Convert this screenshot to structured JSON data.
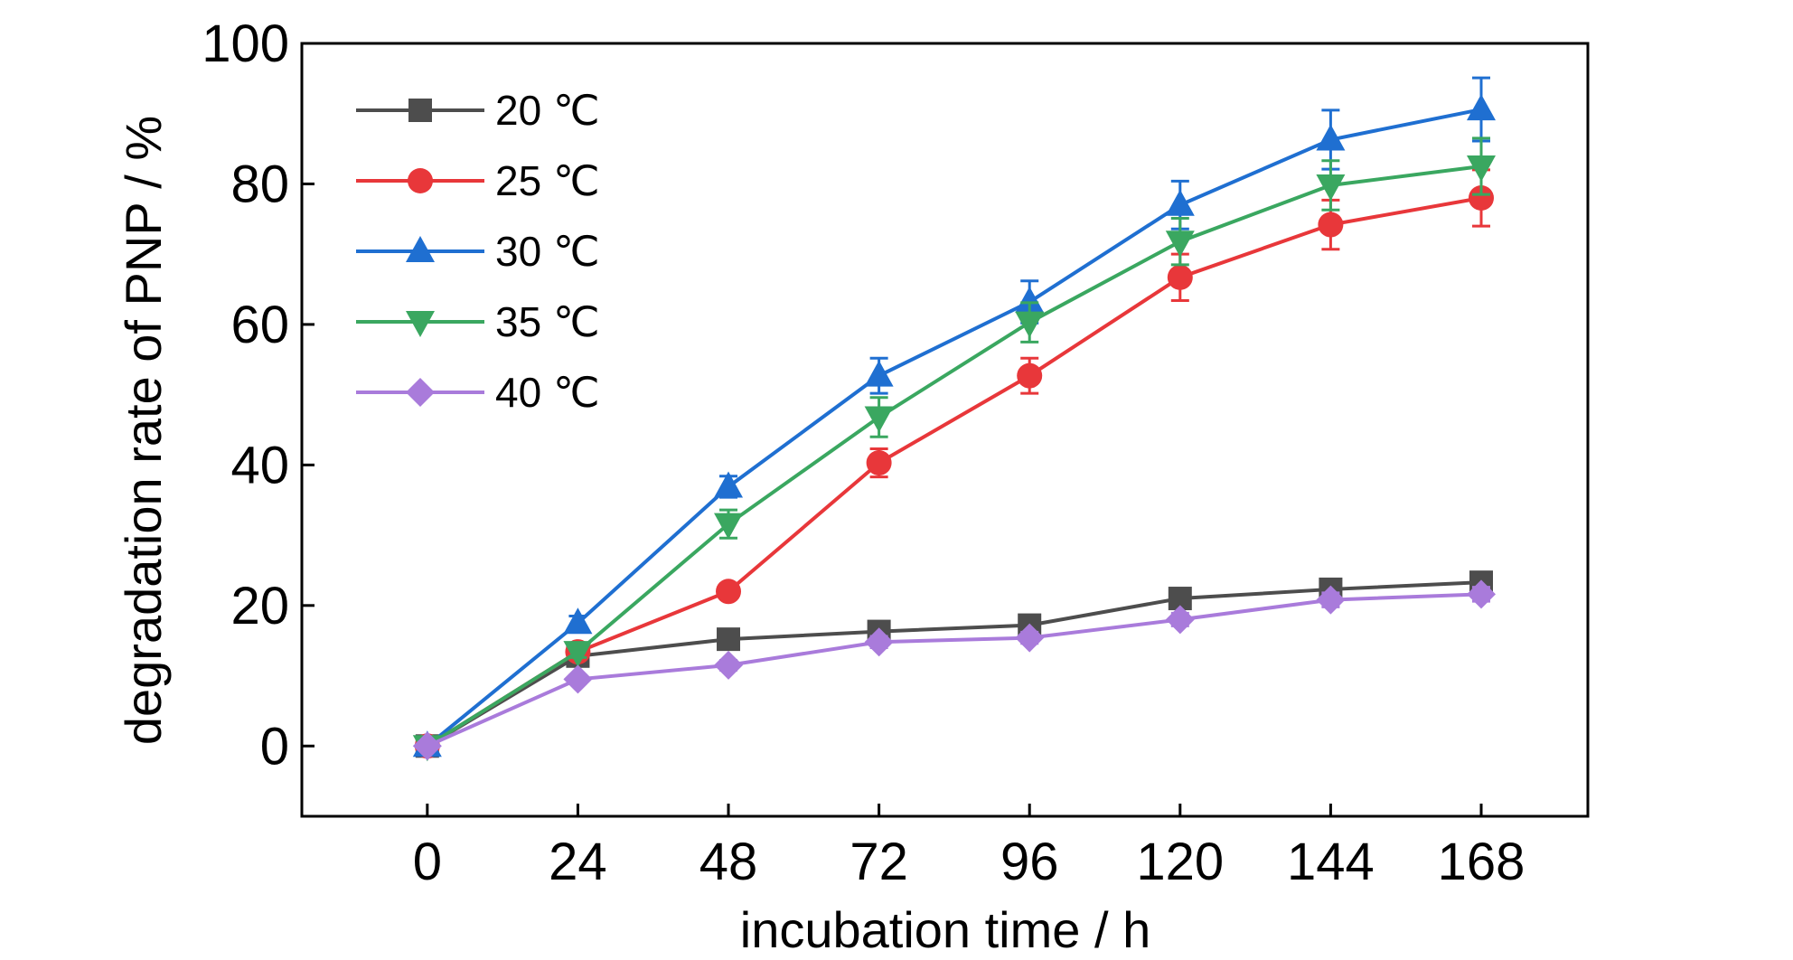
{
  "chart_data": {
    "type": "line",
    "title": "",
    "xlabel": "incubation time / h",
    "ylabel": "degradation rate of PNP / %",
    "x": [
      0,
      24,
      48,
      72,
      96,
      120,
      144,
      168
    ],
    "xlim": [
      -20,
      185
    ],
    "ylim": [
      -10,
      100
    ],
    "xticks": [
      0,
      24,
      48,
      72,
      96,
      120,
      144,
      168
    ],
    "yticks": [
      0,
      20,
      40,
      60,
      80,
      100
    ],
    "grid": false,
    "legend_position": "top-left",
    "series": [
      {
        "name": "20 ℃",
        "color": "#4d4d4d",
        "marker": "square",
        "values": [
          0,
          12.8,
          15.2,
          16.3,
          17.2,
          21.0,
          22.3,
          23.3
        ],
        "errors": [
          0,
          0.8,
          0.8,
          0.8,
          0.9,
          1.0,
          1.0,
          1.2
        ]
      },
      {
        "name": "25 ℃",
        "color": "#e8373a",
        "marker": "circle",
        "values": [
          0,
          13.4,
          22.0,
          40.3,
          52.7,
          66.7,
          74.2,
          78.0
        ],
        "errors": [
          0,
          0.8,
          1.0,
          2.0,
          2.5,
          3.3,
          3.5,
          4.0
        ]
      },
      {
        "name": "30 ℃",
        "color": "#1f6fd1",
        "marker": "triangle-up",
        "values": [
          0,
          17.5,
          36.9,
          52.7,
          63.2,
          77.0,
          86.3,
          90.6
        ],
        "errors": [
          0,
          1.0,
          1.5,
          2.5,
          3.0,
          3.4,
          4.2,
          4.5
        ]
      },
      {
        "name": "35 ℃",
        "color": "#3aa760",
        "marker": "triangle-down",
        "values": [
          0,
          13.4,
          31.6,
          46.8,
          60.3,
          71.8,
          79.8,
          82.5
        ],
        "errors": [
          0,
          0.8,
          2.0,
          2.8,
          2.8,
          3.3,
          3.5,
          4.0
        ]
      },
      {
        "name": "40 ℃",
        "color": "#a97bdb",
        "marker": "diamond",
        "values": [
          0,
          9.5,
          11.5,
          14.8,
          15.4,
          18.0,
          20.8,
          21.6
        ],
        "errors": [
          0,
          0.6,
          0.7,
          0.8,
          0.8,
          0.9,
          1.0,
          1.0
        ]
      }
    ]
  }
}
